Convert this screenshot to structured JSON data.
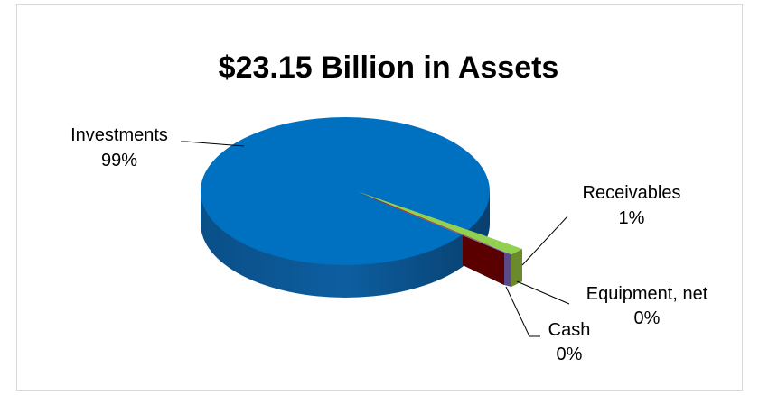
{
  "chart_data": {
    "type": "pie",
    "title": "$23.15 Billion in Assets",
    "slices": [
      {
        "name": "Investments",
        "value": 99,
        "label": "99%",
        "color": "#0070C0"
      },
      {
        "name": "Receivables",
        "value": 1,
        "label": "1%",
        "color": "#92D050"
      },
      {
        "name": "Equipment, net",
        "value": 0,
        "label": "0%",
        "color": "#7F7FBF"
      },
      {
        "name": "Cash",
        "value": 0,
        "label": "0%",
        "color": "#C00000"
      }
    ],
    "style": "3d-exploded"
  }
}
